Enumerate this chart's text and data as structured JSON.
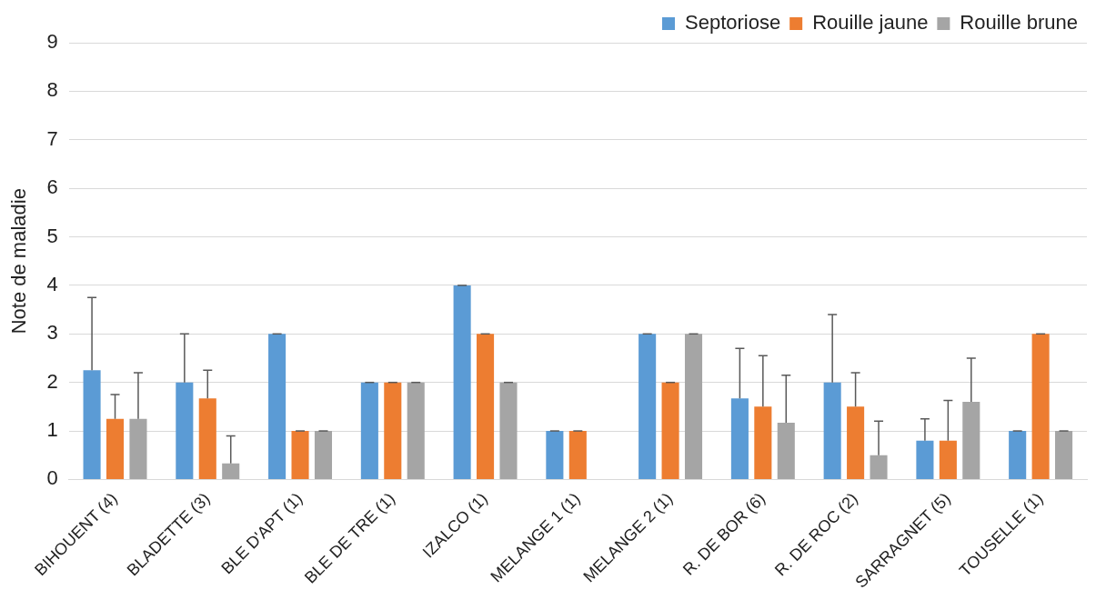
{
  "chart_data": {
    "type": "bar",
    "ylabel": "Note de maladie",
    "categories": [
      "BIHOUENT (4)",
      "BLADETTE (3)",
      "BLE D'APT (1)",
      "BLE DE TRE (1)",
      "IZALCO (1)",
      "MELANGE 1 (1)",
      "MELANGE 2 (1)",
      "R. DE BOR (6)",
      "R. DE ROC (2)",
      "SARRAGNET (5)",
      "TOUSELLE (1)"
    ],
    "series": [
      {
        "name": "Septoriose",
        "color": "#5b9bd5",
        "values": [
          2.25,
          2,
          3,
          2,
          4,
          1,
          3,
          1.67,
          2,
          0.8,
          1
        ],
        "errors": [
          [
            2.25,
            3.75
          ],
          [
            2,
            3
          ],
          [
            3,
            3
          ],
          [
            2,
            2
          ],
          [
            4,
            4
          ],
          [
            1,
            1
          ],
          [
            3,
            3
          ],
          [
            1.67,
            2.7
          ],
          [
            2,
            3.4
          ],
          [
            0.8,
            1.25
          ],
          [
            1,
            1
          ]
        ]
      },
      {
        "name": "Rouille jaune",
        "color": "#ed7d31",
        "values": [
          1.25,
          1.67,
          1,
          2,
          3,
          1,
          2,
          1.5,
          1.5,
          0.8,
          3
        ],
        "errors": [
          [
            1.25,
            1.75
          ],
          [
            1.67,
            2.25
          ],
          [
            1,
            1
          ],
          [
            2,
            2
          ],
          [
            3,
            3
          ],
          [
            1,
            1
          ],
          [
            2,
            2
          ],
          [
            1.5,
            2.55
          ],
          [
            1.5,
            2.2
          ],
          [
            0.8,
            1.63
          ],
          [
            3,
            3
          ]
        ]
      },
      {
        "name": "Rouille brune",
        "color": "#a5a5a5",
        "values": [
          1.25,
          0.33,
          1,
          2,
          2,
          null,
          3,
          1.17,
          0.5,
          1.6,
          1
        ],
        "errors": [
          [
            1.25,
            2.2
          ],
          [
            0.33,
            0.9
          ],
          [
            1,
            1
          ],
          [
            2,
            2
          ],
          [
            2,
            2
          ],
          null,
          [
            3,
            3
          ],
          [
            1.17,
            2.15
          ],
          [
            0.5,
            1.2
          ],
          [
            1.6,
            2.5
          ],
          [
            1,
            1
          ]
        ]
      }
    ],
    "ylim": [
      0,
      9
    ],
    "yticks": [
      0,
      1,
      2,
      3,
      4,
      5,
      6,
      7,
      8,
      9
    ],
    "grid": "y",
    "legend": "top right"
  }
}
